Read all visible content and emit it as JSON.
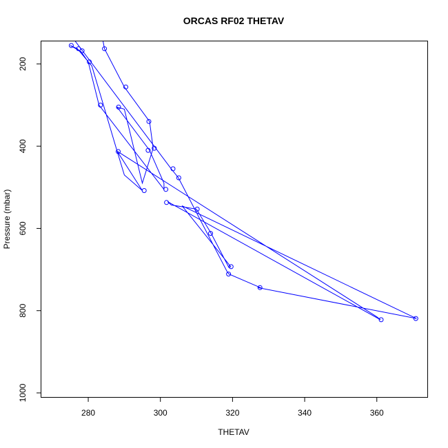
{
  "chart_data": {
    "type": "line",
    "title": "ORCAS RF02 THETAV",
    "xlabel": "THETAV",
    "ylabel": "Pressure (mbar)",
    "xlim": [
      267,
      374
    ],
    "ylim": [
      1010,
      145
    ],
    "y_inverted": true,
    "x_ticks": [
      280,
      300,
      320,
      340,
      360
    ],
    "y_ticks": [
      200,
      400,
      600,
      800,
      1000
    ],
    "grid": false,
    "legend": "none",
    "marker": "open-circle",
    "series": [
      {
        "color": "#0000ff",
        "points": [
          [
            284,
            140
          ],
          [
            284.5,
            163
          ],
          [
            290,
            256
          ],
          [
            297,
            340
          ],
          [
            298,
            405
          ],
          [
            295,
            490
          ],
          [
            290,
            310
          ],
          [
            288,
            305
          ],
          [
            297,
            410
          ],
          [
            301,
            490
          ],
          [
            301,
            505
          ],
          [
            283,
            300
          ],
          [
            280,
            195
          ],
          [
            278,
            170
          ],
          [
            275,
            155
          ],
          [
            277,
            163
          ],
          [
            281,
            205
          ],
          [
            288,
            412
          ],
          [
            295,
            508
          ],
          [
            290,
            470
          ],
          [
            288,
            412
          ],
          [
            360,
            815
          ],
          [
            361,
            822
          ],
          [
            302,
            535
          ],
          [
            303,
            543
          ],
          [
            310,
            553
          ],
          [
            314,
            611
          ],
          [
            319,
            695
          ],
          [
            319.5,
            693
          ],
          [
            306,
            545
          ],
          [
            370,
            815
          ],
          [
            371,
            819
          ],
          [
            327,
            744
          ],
          [
            328,
            745
          ],
          [
            319,
            711
          ],
          [
            318.5,
            705
          ],
          [
            305,
            477
          ],
          [
            303,
            455
          ],
          [
            276,
            140
          ]
        ],
        "markers": [
          [
            275.3,
            155
          ],
          [
            277.3,
            163
          ],
          [
            278.3,
            168
          ],
          [
            280.3,
            195
          ],
          [
            283.4,
            300
          ],
          [
            284.5,
            163
          ],
          [
            288.4,
            305
          ],
          [
            288.3,
            413
          ],
          [
            290.4,
            256
          ],
          [
            295.5,
            508
          ],
          [
            296.8,
            340
          ],
          [
            296.6,
            410
          ],
          [
            298.3,
            405
          ],
          [
            301.5,
            505
          ],
          [
            301.7,
            537
          ],
          [
            303.5,
            455
          ],
          [
            305.1,
            477
          ],
          [
            310.2,
            553
          ],
          [
            313.9,
            612
          ],
          [
            319.6,
            693
          ],
          [
            318.9,
            711
          ],
          [
            327.6,
            744
          ],
          [
            361.2,
            822
          ],
          [
            370.8,
            819
          ]
        ]
      }
    ]
  }
}
